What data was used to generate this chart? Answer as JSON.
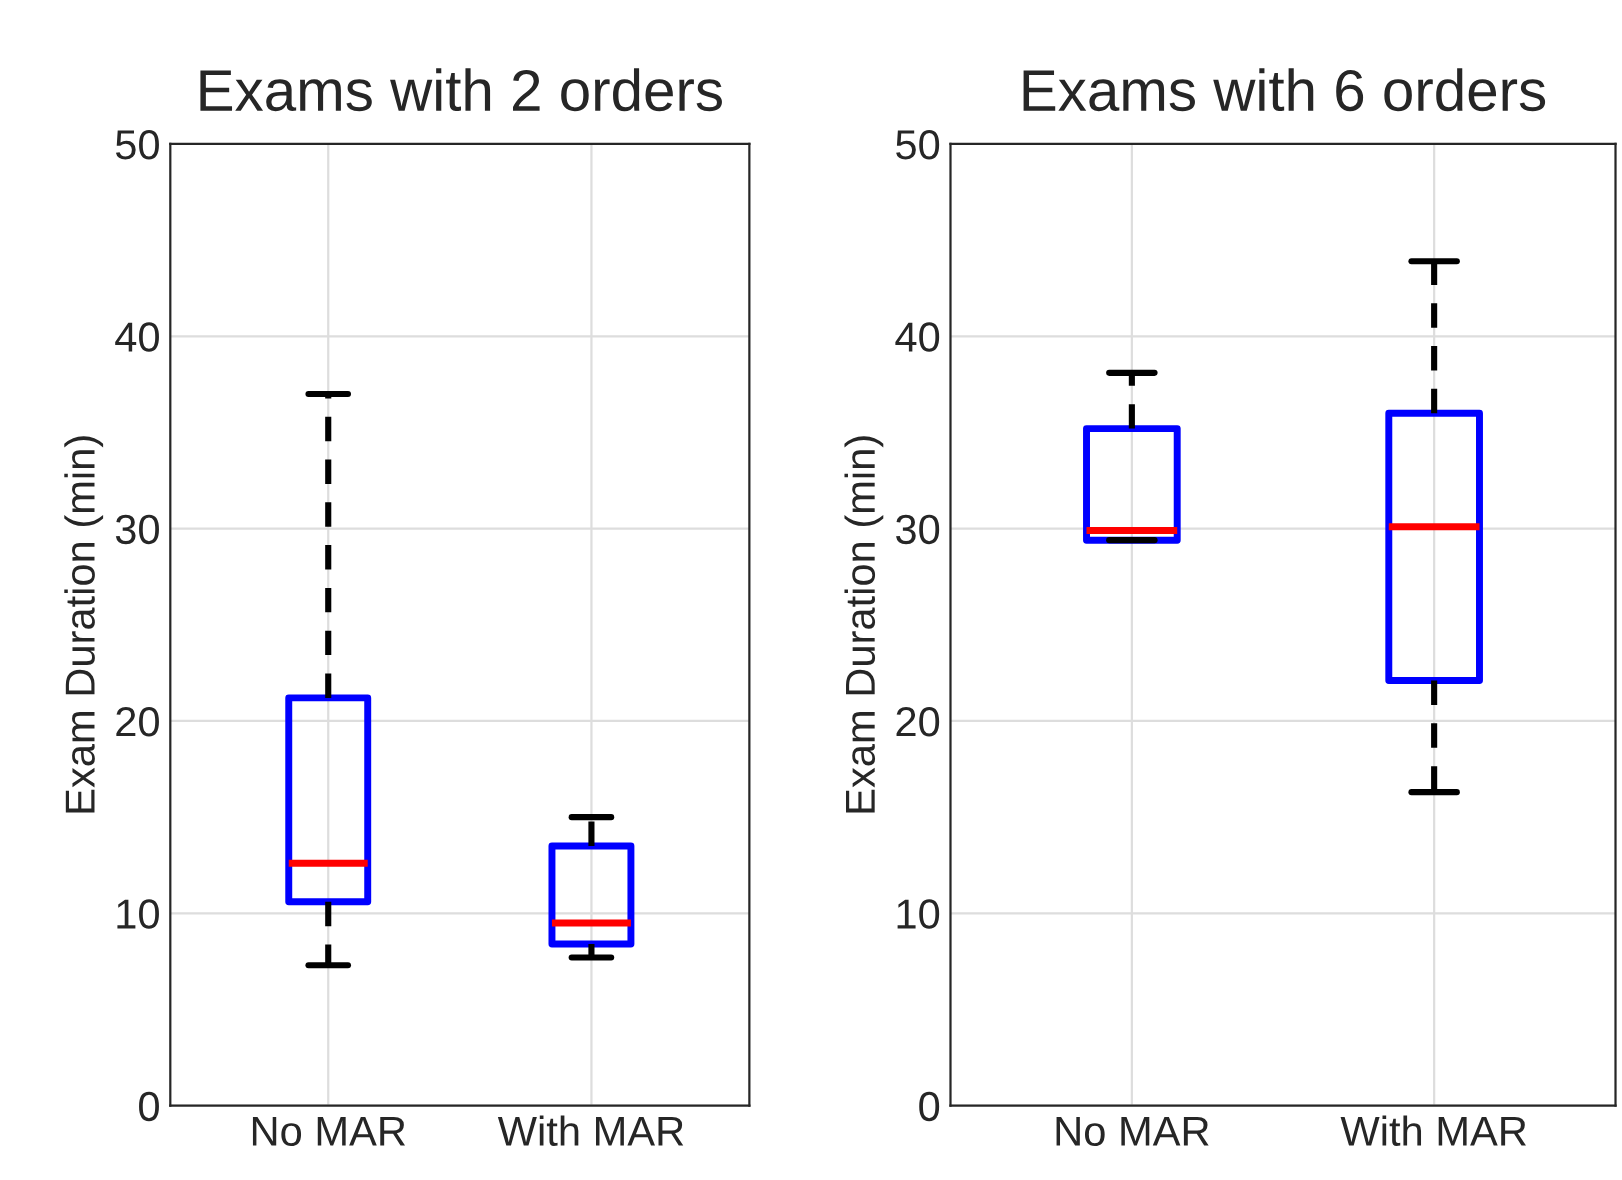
{
  "chart_data": [
    {
      "type": "box",
      "title": "Exams with 2 orders",
      "ylabel": "Exam Duration (min)",
      "categories": [
        "No MAR",
        "With MAR"
      ],
      "ylim": [
        0,
        50
      ],
      "yticks": [
        0,
        10,
        20,
        30,
        40,
        50
      ],
      "grid": true,
      "boxes": [
        {
          "low": 7.3,
          "q1": 10.6,
          "median": 12.6,
          "q3": 21.2,
          "high": 37.0
        },
        {
          "low": 7.7,
          "q1": 8.4,
          "median": 9.5,
          "q3": 13.5,
          "high": 15.0
        }
      ]
    },
    {
      "type": "box",
      "title": "Exams with 6 orders",
      "ylabel": "Exam Duration (min)",
      "categories": [
        "No MAR",
        "With MAR"
      ],
      "ylim": [
        0,
        50
      ],
      "yticks": [
        0,
        10,
        20,
        30,
        40,
        50
      ],
      "grid": true,
      "boxes": [
        {
          "low": 29.4,
          "q1": 29.4,
          "median": 29.9,
          "q3": 35.2,
          "high": 38.1
        },
        {
          "low": 16.3,
          "q1": 22.1,
          "median": 30.1,
          "q3": 36.0,
          "high": 43.9
        }
      ]
    }
  ]
}
